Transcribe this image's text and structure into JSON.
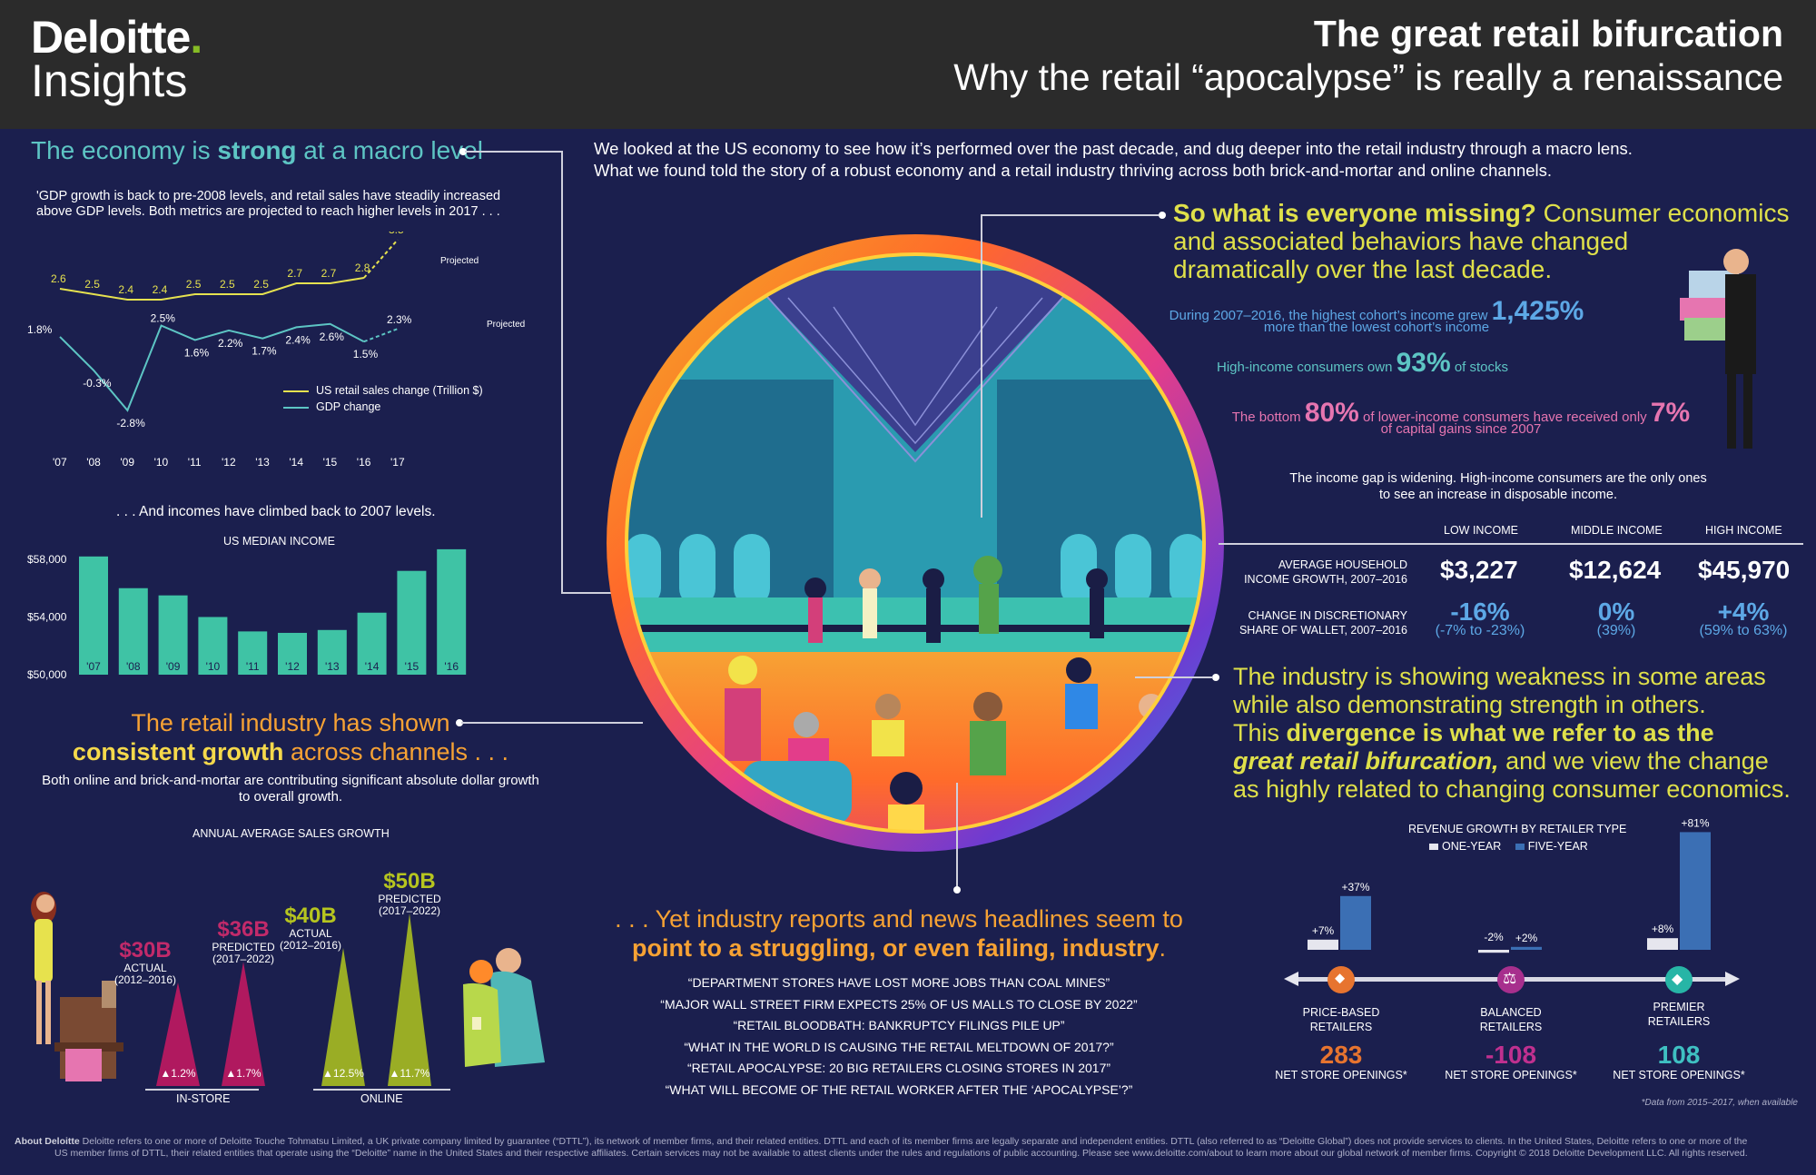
{
  "header": {
    "logo_main": "Deloitte",
    "logo_dot": ".",
    "logo_sub": "Insights",
    "title": "The great retail bifurcation",
    "subtitle": "Why the retail “apocalypse” is really a renaissance"
  },
  "economy": {
    "heading_pre": "The economy is ",
    "heading_bold": "strong",
    "heading_post": " at a macro level",
    "desc_line1": "'GDP growth is back to pre-2008 levels, and retail sales have steadily increased",
    "desc_line2": "above GDP levels. Both metrics are projected to reach higher levels in 2017 . . .",
    "projected_label": "Projected",
    "legend_sales": "US retail sales change (Trillion $)",
    "legend_gdp": "GDP change"
  },
  "intro": {
    "line1": "We looked at the US economy to see how it’s performed over the past decade, and dug deeper into the retail industry through a macro lens.",
    "line2": "What we found told the story of a robust economy and a retail industry thriving across both brick-and-mortar and online channels."
  },
  "incomes": {
    "heading": ". . . And incomes have climbed back to 2007 levels.",
    "chart_title": "US MEDIAN INCOME"
  },
  "retail_growth": {
    "heading_line1": "The retail industry has shown",
    "heading_bold": "consistent growth",
    "heading_post": " across  channels . . .",
    "desc_line1": "Both online and brick-and-mortar are contributing significant absolute dollar growth",
    "desc_line2": "to overall growth.",
    "chart_title": "ANNUAL AVERAGE SALES GROWTH",
    "items": [
      {
        "value": "$30B",
        "label1": "ACTUAL",
        "label2": "(2012–2016)",
        "pct": "▲1.2%"
      },
      {
        "value": "$36B",
        "label1": "PREDICTED",
        "label2": "(2017–2022)",
        "pct": "▲1.7%"
      },
      {
        "value": "$40B",
        "label1": "ACTUAL",
        "label2": "(2012–2016)",
        "pct": "▲12.5%"
      },
      {
        "value": "$50B",
        "label1": "PREDICTED",
        "label2": "(2017–2022)",
        "pct": "▲11.7%"
      }
    ],
    "group_instore": "IN-STORE",
    "group_online": "ONLINE"
  },
  "missing": {
    "bold": "So what is everyone missing?",
    "rest1": " Consumer economics",
    "line2": "and associated behaviors have changed",
    "line3": "dramatically over the last decade.",
    "stat1_pre": "During 2007–2016, the highest cohort’s income grew",
    "stat1_big": "1,425%",
    "stat1_post": "more than the lowest cohort’s income",
    "stat2_pre": "High-income consumers own",
    "stat2_big": "93%",
    "stat2_post": "of stocks",
    "stat3_pre": "The bottom",
    "stat3_big1": "80%",
    "stat3_mid": "of lower-income consumers have received only",
    "stat3_big2": "7%",
    "stat3_post": "of capital gains since 2007",
    "gap_line1": "The income gap is widening. High-income consumers are the only ones",
    "gap_line2": "to see an increase in disposable income."
  },
  "income_table": {
    "headers": [
      "LOW INCOME",
      "MIDDLE INCOME",
      "HIGH INCOME"
    ],
    "row1_label1": "AVERAGE HOUSEHOLD",
    "row1_label2": "INCOME GROWTH, 2007–2016",
    "row1_values": [
      "$3,227",
      "$12,624",
      "$45,970"
    ],
    "row2_label1": "CHANGE IN DISCRETIONARY",
    "row2_label2": "SHARE OF WALLET, 2007–2016",
    "row2_values": [
      "-16%",
      "0%",
      "+4%"
    ],
    "row2_sub": [
      "(-7% to -23%)",
      "(39%)",
      "(59% to 63%)"
    ]
  },
  "industry": {
    "line1": "The industry is showing weakness in some areas",
    "line2": "while also demonstrating strength in others.",
    "line3_pre": "This ",
    "line3_bold": "divergence is what we refer to as the",
    "line4_bold": "great retail bifurcation,",
    "line4_post": " and we view the change",
    "line5": "as highly related to changing consumer economics."
  },
  "headlines": {
    "line1": ". . . Yet industry reports and news headlines seem to",
    "line2": "point to a struggling, or even failing, industry",
    "line2_end": ".",
    "quotes": [
      "“DEPARTMENT STORES HAVE LOST MORE JOBS THAN COAL MINES”",
      "“MAJOR WALL STREET FIRM EXPECTS 25% OF US MALLS TO CLOSE BY 2022”",
      "“RETAIL BLOODBATH: BANKRUPTCY FILINGS PILE UP”",
      "“WHAT IN THE WORLD IS CAUSING THE RETAIL MELTDOWN OF 2017?”",
      "“RETAIL APOCALYPSE: 20 BIG RETAILERS CLOSING STORES IN 2017”",
      "“WHAT WILL BECOME OF THE RETAIL WORKER AFTER THE ‘APOCALYPSE’?”"
    ]
  },
  "revenue": {
    "title": "REVENUE GROWTH BY RETAILER TYPE",
    "legend_one": "ONE-YEAR",
    "legend_five": "FIVE-YEAR",
    "groups": [
      {
        "name1": "PRICE-BASED",
        "name2": "RETAILERS",
        "one_label": "+7%",
        "five_label": "+37%",
        "stores": "283"
      },
      {
        "name1": "BALANCED",
        "name2": "RETAILERS",
        "one_label": "-2%",
        "five_label": "+2%",
        "stores": "-108"
      },
      {
        "name1": "PREMIER",
        "name2": "RETAILERS",
        "one_label": "+8%",
        "five_label": "+81%",
        "stores": "108"
      }
    ],
    "stores_label": "NET STORE OPENINGS*",
    "footnote": "*Data from 2015–2017, when available"
  },
  "footer": {
    "bold": "About Deloitte",
    "line1": " Deloitte refers to one or more of Deloitte Touche Tohmatsu Limited, a UK private company limited by guarantee (“DTTL”), its network of member firms, and their related entities. DTTL and each of its member firms are legally separate and independent entities. DTTL (also referred to as “Deloitte Global”) does not provide services to clients. In the United States, Deloitte refers to one or more of the",
    "line2": "US member firms of DTTL, their related entities that operate using the “Deloitte” name in the United States and their respective affiliates. Certain services may not be available to attest clients under the rules and regulations of public accounting. Please see www.deloitte.com/about to learn more about our global network of member firms. Copyright © 2018 Deloitte Development LLC. All rights reserved."
  },
  "colors": {
    "background": "#1b1f4e",
    "header": "#2b2b2b",
    "teal": "#5dc5c4",
    "yellow": "#e6e24f",
    "orange": "#f7a234",
    "magenta": "#b0195f",
    "olive": "#9aad25",
    "blue_bar": "#3b6fb4",
    "pink": "#e675b0"
  },
  "chart_data": [
    {
      "type": "line",
      "x": [
        "'07",
        "'08",
        "'09",
        "'10",
        "'11",
        "'12",
        "'13",
        "'14",
        "'15",
        "'16",
        "'17"
      ],
      "series": [
        {
          "name": "US retail sales change (Trillion $)",
          "values": [
            2.6,
            2.5,
            2.4,
            2.4,
            2.5,
            2.5,
            2.5,
            2.7,
            2.7,
            2.8,
            3.5
          ],
          "labels": [
            "2.6",
            "2.5",
            "2.4",
            "2.4",
            "2.5",
            "2.5",
            "2.5",
            "2.7",
            "2.7",
            "2.8",
            "3.5"
          ]
        },
        {
          "name": "GDP change",
          "values": [
            1.8,
            -0.3,
            -2.8,
            2.5,
            1.6,
            2.2,
            1.7,
            2.4,
            2.6,
            1.5,
            2.3
          ],
          "labels": [
            "1.8%",
            "-0.3%",
            "-2.8%",
            "2.5%",
            "1.6%",
            "2.2%",
            "1.7%",
            "2.4%",
            "2.6%",
            "1.5%",
            "2.3%"
          ]
        }
      ],
      "projected_from": "'16"
    },
    {
      "type": "bar",
      "title": "US MEDIAN INCOME",
      "categories": [
        "'07",
        "'08",
        "'09",
        "'10",
        "'11",
        "'12",
        "'13",
        "'14",
        "'15",
        "'16"
      ],
      "values": [
        58200,
        56000,
        55500,
        54000,
        53000,
        52900,
        53100,
        54300,
        57200,
        58700
      ],
      "ylim": [
        50000,
        58000
      ],
      "yticks": [
        "$58,000",
        "$54,000",
        "$50,000"
      ]
    },
    {
      "type": "bar",
      "title": "ANNUAL AVERAGE SALES GROWTH",
      "categories": [
        "IN-STORE ACTUAL (2012–2016)",
        "IN-STORE PREDICTED (2017–2022)",
        "ONLINE ACTUAL (2012–2016)",
        "ONLINE PREDICTED (2017–2022)"
      ],
      "values": [
        30,
        36,
        40,
        50
      ],
      "unit": "$B"
    },
    {
      "type": "bar",
      "title": "REVENUE GROWTH BY RETAILER TYPE",
      "categories": [
        "PRICE-BASED RETAILERS",
        "BALANCED RETAILERS",
        "PREMIER RETAILERS"
      ],
      "series": [
        {
          "name": "ONE-YEAR",
          "values": [
            7,
            -2,
            8
          ]
        },
        {
          "name": "FIVE-YEAR",
          "values": [
            37,
            2,
            81
          ]
        }
      ]
    }
  ]
}
